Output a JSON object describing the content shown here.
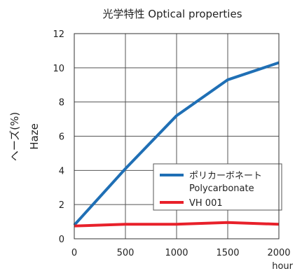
{
  "chart_data": {
    "type": "line",
    "title": "光学特性 Optical properties",
    "xlabel": "hour",
    "ylabel": [
      "ヘーズ(%)",
      "Haze"
    ],
    "xlim": [
      0,
      2000
    ],
    "ylim": [
      0,
      12
    ],
    "xticks": [
      0,
      500,
      1000,
      1500,
      2000
    ],
    "yticks": [
      0,
      2,
      4,
      6,
      8,
      10,
      12
    ],
    "grid": true,
    "legend_position": "right-center",
    "x": [
      0,
      500,
      1000,
      1500,
      2000
    ],
    "series": [
      {
        "name": [
          "ポリカーボネート",
          "Polycarbonate"
        ],
        "color": "#1f6fb5",
        "values": [
          0.8,
          4.1,
          7.2,
          9.3,
          10.3
        ]
      },
      {
        "name": [
          "VH 001"
        ],
        "color": "#e8202a",
        "values": [
          0.75,
          0.85,
          0.85,
          0.95,
          0.85
        ]
      }
    ]
  }
}
